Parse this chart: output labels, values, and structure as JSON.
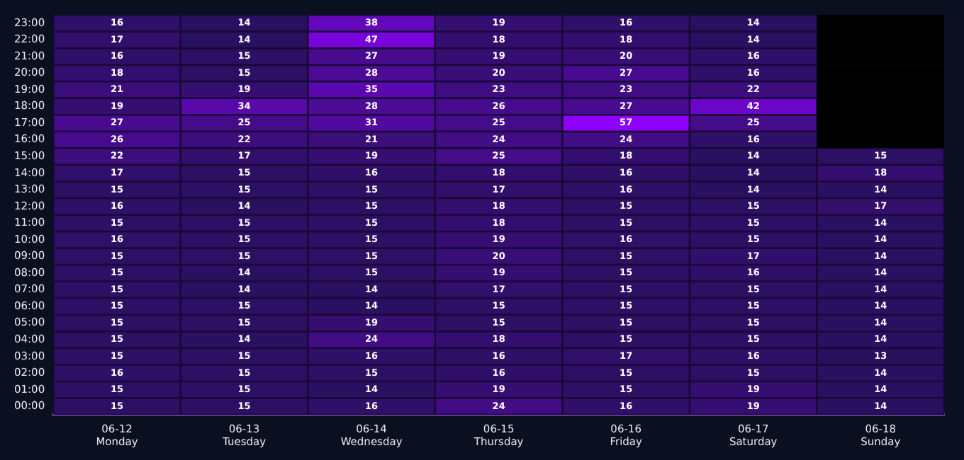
{
  "chart_data": {
    "type": "heatmap",
    "categories": [
      "06-12\nMonday",
      "06-13\nTuesday",
      "06-14\nWednesday",
      "06-15\nThursday",
      "06-16\nFriday",
      "06-17\nSaturday",
      "06-18\nSunday"
    ],
    "y_categories": [
      "23:00",
      "22:00",
      "21:00",
      "20:00",
      "19:00",
      "18:00",
      "17:00",
      "16:00",
      "15:00",
      "14:00",
      "13:00",
      "12:00",
      "11:00",
      "10:00",
      "09:00",
      "08:00",
      "07:00",
      "06:00",
      "05:00",
      "04:00",
      "03:00",
      "02:00",
      "01:00",
      "00:00"
    ],
    "cells": [
      [
        16,
        14,
        38,
        19,
        16,
        14,
        null
      ],
      [
        17,
        14,
        47,
        18,
        18,
        14,
        null
      ],
      [
        16,
        15,
        27,
        19,
        20,
        16,
        null
      ],
      [
        18,
        15,
        28,
        20,
        27,
        16,
        null
      ],
      [
        21,
        19,
        35,
        23,
        23,
        22,
        null
      ],
      [
        19,
        34,
        28,
        26,
        27,
        42,
        null
      ],
      [
        27,
        25,
        31,
        25,
        57,
        25,
        null
      ],
      [
        26,
        22,
        21,
        24,
        24,
        16,
        null
      ],
      [
        22,
        17,
        19,
        25,
        18,
        14,
        15
      ],
      [
        17,
        15,
        16,
        18,
        16,
        14,
        18
      ],
      [
        15,
        15,
        15,
        17,
        16,
        14,
        14
      ],
      [
        16,
        14,
        15,
        18,
        15,
        15,
        17
      ],
      [
        15,
        15,
        15,
        18,
        15,
        15,
        14
      ],
      [
        16,
        15,
        15,
        19,
        16,
        15,
        14
      ],
      [
        15,
        15,
        15,
        20,
        15,
        17,
        14
      ],
      [
        15,
        14,
        15,
        19,
        15,
        16,
        14
      ],
      [
        15,
        14,
        14,
        17,
        15,
        15,
        14
      ],
      [
        15,
        15,
        14,
        15,
        15,
        15,
        14
      ],
      [
        15,
        15,
        19,
        15,
        15,
        15,
        14
      ],
      [
        15,
        14,
        24,
        18,
        15,
        15,
        14
      ],
      [
        15,
        15,
        16,
        16,
        17,
        16,
        13
      ],
      [
        16,
        15,
        15,
        16,
        15,
        15,
        14
      ],
      [
        15,
        15,
        14,
        19,
        15,
        19,
        14
      ],
      [
        15,
        15,
        16,
        24,
        16,
        19,
        14
      ]
    ],
    "data_labels": true
  }
}
